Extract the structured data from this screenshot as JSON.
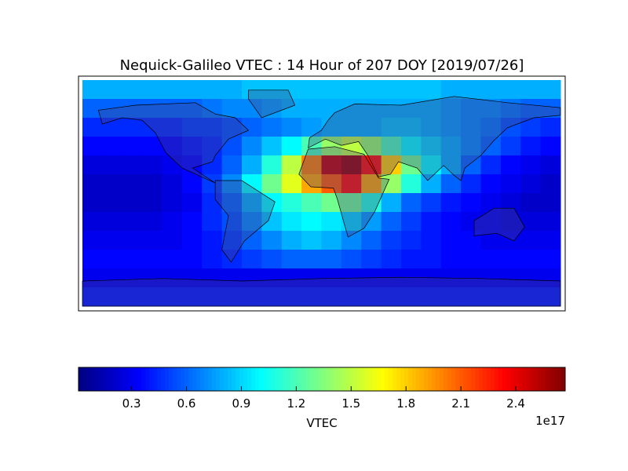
{
  "chart_data": {
    "type": "heatmap",
    "title": "Nequick-Galileo VTEC : 14 Hour of 207 DOY [2019/07/26]",
    "colorbar_label": "VTEC",
    "colorbar_offset": "1e17",
    "colormap": "jet",
    "clim": [
      0.01,
      2.67
    ],
    "cticks": [
      0.3,
      0.6,
      0.9,
      1.2,
      1.5,
      1.8,
      2.1,
      2.4
    ],
    "values": [
      [
        0.8,
        0.8,
        0.8,
        0.8,
        0.8,
        0.8,
        0.8,
        0.8,
        0.85,
        0.85,
        0.85,
        0.85,
        0.85,
        0.85,
        0.85,
        0.85,
        0.85,
        0.85,
        0.8,
        0.8,
        0.8,
        0.8,
        0.8,
        0.8
      ],
      [
        0.6,
        0.6,
        0.6,
        0.6,
        0.6,
        0.6,
        0.65,
        0.7,
        0.7,
        0.75,
        0.8,
        0.8,
        0.8,
        0.8,
        0.8,
        0.8,
        0.8,
        0.8,
        0.75,
        0.7,
        0.7,
        0.65,
        0.6,
        0.6
      ],
      [
        0.45,
        0.45,
        0.45,
        0.45,
        0.45,
        0.5,
        0.5,
        0.55,
        0.6,
        0.65,
        0.7,
        0.75,
        0.8,
        0.8,
        0.8,
        0.85,
        0.85,
        0.8,
        0.75,
        0.7,
        0.65,
        0.55,
        0.5,
        0.45
      ],
      [
        0.35,
        0.35,
        0.35,
        0.35,
        0.35,
        0.4,
        0.45,
        0.55,
        0.7,
        0.85,
        1.0,
        1.2,
        1.4,
        1.5,
        1.4,
        1.2,
        1.0,
        0.9,
        0.8,
        0.7,
        0.6,
        0.5,
        0.4,
        0.35
      ],
      [
        0.25,
        0.25,
        0.25,
        0.25,
        0.3,
        0.35,
        0.45,
        0.6,
        0.8,
        1.1,
        1.5,
        2.0,
        2.5,
        2.6,
        2.3,
        1.8,
        1.3,
        1.0,
        0.8,
        0.6,
        0.45,
        0.35,
        0.3,
        0.25
      ],
      [
        0.2,
        0.2,
        0.2,
        0.2,
        0.25,
        0.35,
        0.5,
        0.7,
        1.0,
        1.3,
        1.6,
        1.9,
        2.1,
        2.3,
        1.9,
        1.4,
        1.1,
        0.8,
        0.6,
        0.45,
        0.35,
        0.3,
        0.25,
        0.2
      ],
      [
        0.2,
        0.2,
        0.2,
        0.2,
        0.25,
        0.3,
        0.45,
        0.6,
        0.8,
        1.0,
        1.1,
        1.2,
        1.3,
        1.3,
        1.1,
        0.8,
        0.6,
        0.5,
        0.4,
        0.35,
        0.3,
        0.25,
        0.2,
        0.2
      ],
      [
        0.25,
        0.25,
        0.25,
        0.25,
        0.3,
        0.35,
        0.45,
        0.55,
        0.7,
        0.85,
        0.95,
        1.0,
        0.95,
        0.9,
        0.75,
        0.6,
        0.5,
        0.4,
        0.35,
        0.3,
        0.3,
        0.25,
        0.25,
        0.25
      ],
      [
        0.3,
        0.3,
        0.3,
        0.3,
        0.3,
        0.35,
        0.4,
        0.5,
        0.6,
        0.7,
        0.8,
        0.85,
        0.8,
        0.7,
        0.6,
        0.5,
        0.45,
        0.4,
        0.35,
        0.35,
        0.3,
        0.3,
        0.3,
        0.3
      ],
      [
        0.35,
        0.35,
        0.35,
        0.35,
        0.35,
        0.35,
        0.4,
        0.45,
        0.5,
        0.55,
        0.6,
        0.6,
        0.6,
        0.55,
        0.5,
        0.45,
        0.4,
        0.4,
        0.35,
        0.35,
        0.35,
        0.35,
        0.35,
        0.35
      ],
      [
        0.3,
        0.3,
        0.3,
        0.3,
        0.3,
        0.3,
        0.3,
        0.3,
        0.3,
        0.3,
        0.3,
        0.3,
        0.3,
        0.3,
        0.3,
        0.3,
        0.3,
        0.3,
        0.3,
        0.3,
        0.3,
        0.3,
        0.3,
        0.3
      ],
      [
        0.4,
        0.4,
        0.4,
        0.4,
        0.4,
        0.4,
        0.4,
        0.4,
        0.4,
        0.4,
        0.4,
        0.4,
        0.4,
        0.4,
        0.4,
        0.4,
        0.4,
        0.4,
        0.4,
        0.4,
        0.4,
        0.4,
        0.4,
        0.4
      ]
    ]
  }
}
